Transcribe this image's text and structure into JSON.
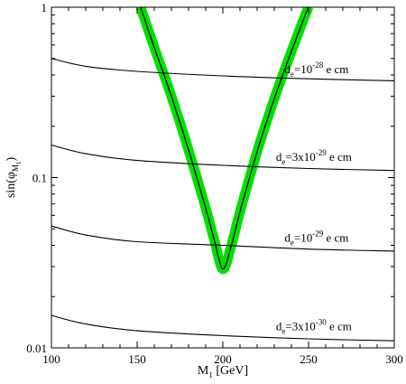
{
  "chart_data": {
    "type": "line",
    "xlabel": {
      "main": "M",
      "sub": "1",
      "unit": " [GeV]"
    },
    "ylabel": {
      "pre": "sin(φ",
      "sub": "M",
      "subsub": "1",
      "post": ")"
    },
    "xlim": [
      100,
      300
    ],
    "ylim": [
      0.01,
      1
    ],
    "yscale": "log",
    "grid": false,
    "x_ticks": [
      100,
      150,
      200,
      250,
      300
    ],
    "x_tick_labels": [
      "100",
      "150",
      "200",
      "250",
      "300"
    ],
    "y_ticks": [
      0.01,
      0.1,
      1
    ],
    "y_tick_labels": [
      "0.01",
      "0.1",
      "1"
    ],
    "constraint_band": {
      "color": "#00e000",
      "center_color": "#000000",
      "x": [
        152,
        160,
        170,
        180,
        190,
        195,
        200,
        205,
        210,
        220,
        230,
        240,
        250,
        252
      ],
      "y": [
        1.0,
        0.58,
        0.3,
        0.145,
        0.066,
        0.043,
        0.029,
        0.04,
        0.063,
        0.142,
        0.29,
        0.55,
        1.0,
        1.0
      ]
    },
    "series": [
      {
        "x": [
          100,
          120,
          150,
          200,
          250,
          300
        ],
        "y": [
          0.5,
          0.45,
          0.42,
          0.395,
          0.38,
          0.37
        ]
      },
      {
        "x": [
          100,
          120,
          150,
          200,
          250,
          300
        ],
        "y": [
          0.155,
          0.138,
          0.126,
          0.118,
          0.113,
          0.11
        ]
      },
      {
        "x": [
          100,
          120,
          150,
          200,
          250,
          300
        ],
        "y": [
          0.052,
          0.046,
          0.042,
          0.04,
          0.038,
          0.037
        ]
      },
      {
        "x": [
          100,
          120,
          150,
          200,
          250,
          300
        ],
        "y": [
          0.0155,
          0.0138,
          0.0126,
          0.0118,
          0.0113,
          0.011
        ]
      }
    ],
    "annotations": [
      {
        "base": "d",
        "sub": "e",
        "mid": "=10",
        "sup": "-28",
        "post": " e cm",
        "x": 236,
        "y": 0.43
      },
      {
        "base": "d",
        "sub": "e",
        "mid": "=3x10",
        "sup": "-29",
        "post": " e cm",
        "x": 231,
        "y": 0.132
      },
      {
        "base": "d",
        "sub": "e",
        "mid": "=10",
        "sup": "-29",
        "post": " e cm",
        "x": 236,
        "y": 0.044
      },
      {
        "base": "d",
        "sub": "e",
        "mid": "=3x10",
        "sup": "-30",
        "post": " e cm",
        "x": 231,
        "y": 0.0133
      }
    ]
  }
}
